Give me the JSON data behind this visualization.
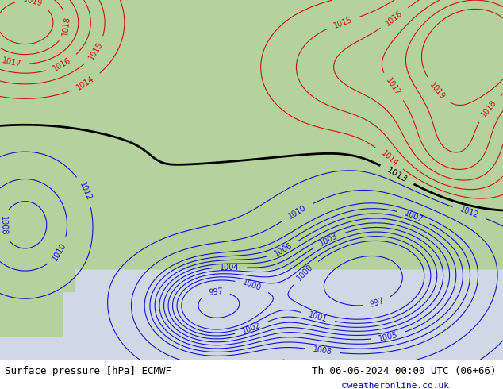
{
  "title_left": "Surface pressure [hPa] ECMWF",
  "title_right": "Th 06-06-2024 00:00 UTC (06+66)",
  "credit": "©weatheronline.co.uk",
  "bg_color_ocean": "#d0d8e8",
  "line_color_black": "#000000",
  "line_color_blue": "#0000cc",
  "line_color_red": "#cc0000",
  "label_color_black": "#000000",
  "label_color_blue": "#0000cc",
  "label_color_red": "#cc0000",
  "bottom_bar_color": "#cccccc",
  "credit_color": "#0000cc",
  "figsize": [
    6.34,
    4.9
  ],
  "dpi": 100
}
